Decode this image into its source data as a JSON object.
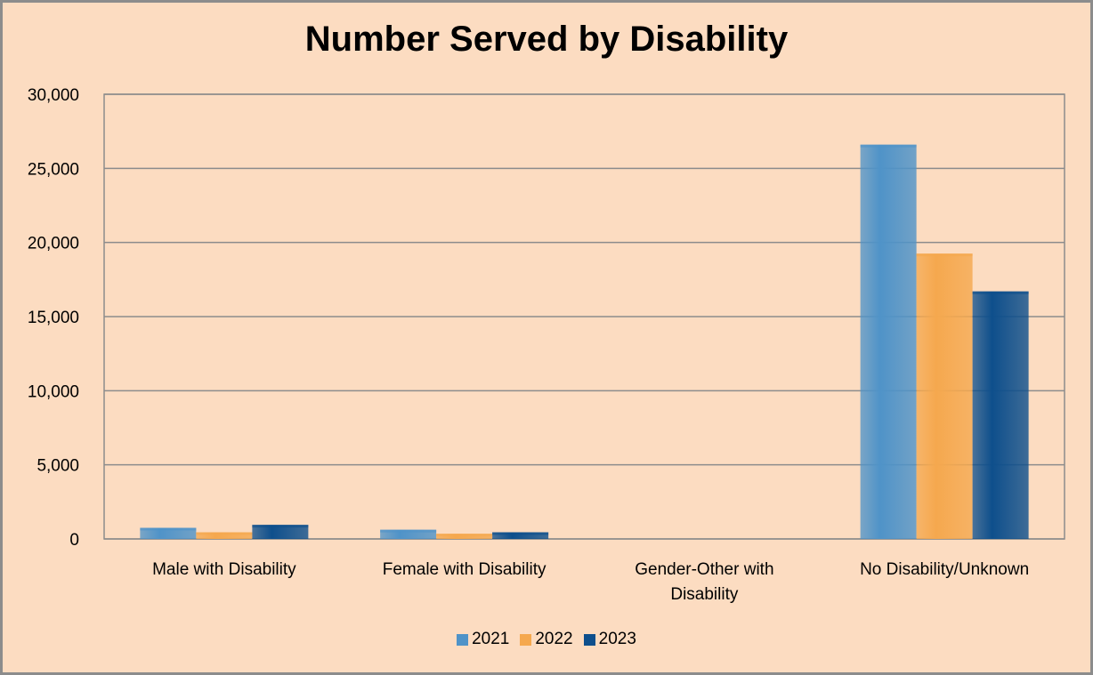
{
  "chart_data": {
    "type": "bar",
    "title": "Number Served by Disability",
    "xlabel": "",
    "ylabel": "",
    "categories": [
      [
        "Male with Disability"
      ],
      [
        "Female with Disability"
      ],
      [
        "Gender-Other with",
        "Disability"
      ],
      [
        "No Disability/Unknown"
      ]
    ],
    "series": [
      {
        "name": "2021",
        "color": "#4f93c8",
        "values": [
          750,
          620,
          0,
          26600
        ]
      },
      {
        "name": "2022",
        "color": "#f5a84e",
        "values": [
          450,
          350,
          0,
          19250
        ]
      },
      {
        "name": "2023",
        "color": "#0e4f8c",
        "values": [
          950,
          450,
          0,
          16700
        ]
      }
    ],
    "ylim": [
      0,
      30000
    ],
    "yticks": [
      "0",
      "5,000",
      "10,000",
      "15,000",
      "20,000",
      "25,000",
      "30,000"
    ],
    "grid": true,
    "legend_position": "bottom"
  }
}
